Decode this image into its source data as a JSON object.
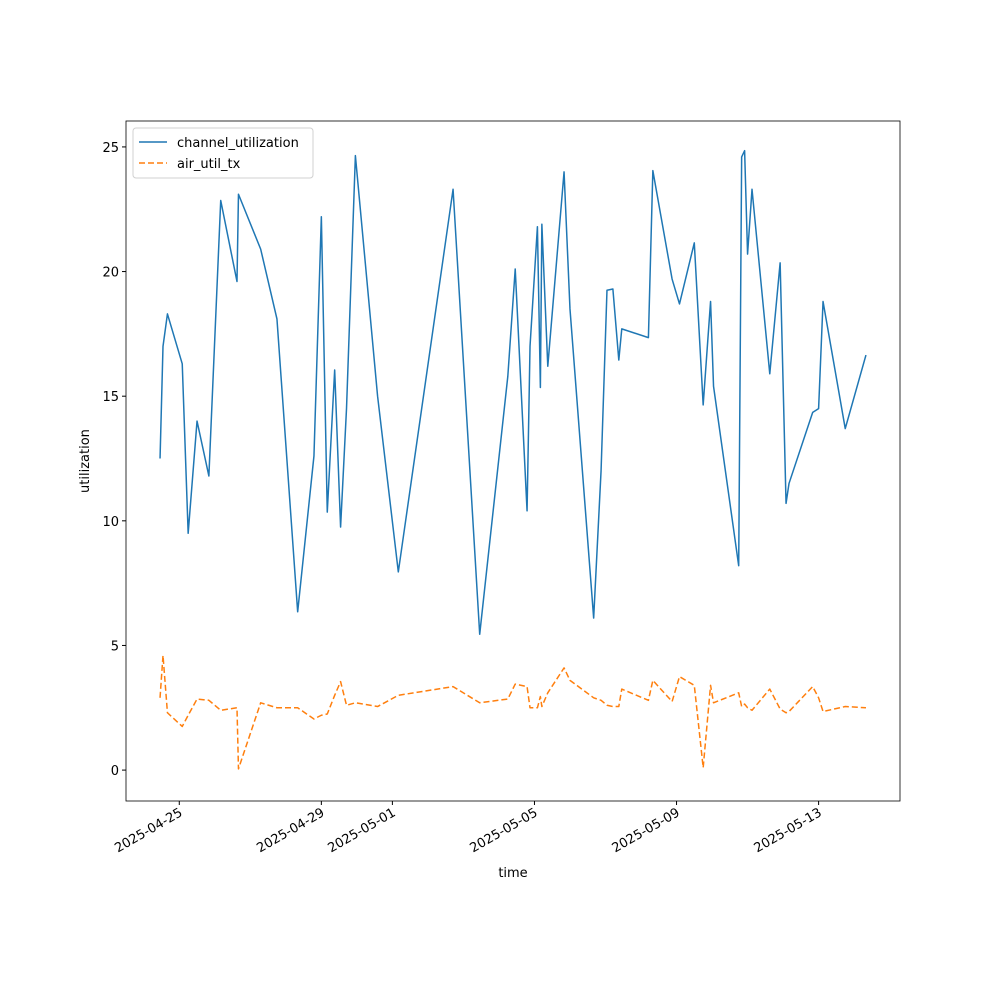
{
  "chart_data": {
    "type": "line",
    "xlabel": "time",
    "ylabel": "utilization",
    "x": [
      "2025-04-24T11:00",
      "2025-04-24T13:00",
      "2025-04-24T16:00",
      "2025-04-25T02:00",
      "2025-04-25T06:00",
      "2025-04-25T12:00",
      "2025-04-25T20:00",
      "2025-04-26T04:00",
      "2025-04-26T15:00",
      "2025-04-26T16:00",
      "2025-04-27T07:00",
      "2025-04-27T18:00",
      "2025-04-28T08:00",
      "2025-04-28T19:00",
      "2025-04-29T00:00",
      "2025-04-29T04:00",
      "2025-04-29T09:00",
      "2025-04-29T13:00",
      "2025-04-29T17:00",
      "2025-04-29T23:00",
      "2025-04-30T14:00",
      "2025-05-01T04:00",
      "2025-05-02T17:00",
      "2025-05-03T11:00",
      "2025-05-04T06:00",
      "2025-05-04T11:00",
      "2025-05-04T19:00",
      "2025-05-04T21:00",
      "2025-05-05T02:00",
      "2025-05-05T04:00",
      "2025-05-05T05:00",
      "2025-05-05T09:00",
      "2025-05-05T20:00",
      "2025-05-06T00:00",
      "2025-05-06T16:00",
      "2025-05-06T21:00",
      "2025-05-07T01:00",
      "2025-05-07T05:00",
      "2025-05-07T09:00",
      "2025-05-07T11:00",
      "2025-05-08T05:00",
      "2025-05-08T08:00",
      "2025-05-08T21:00",
      "2025-05-09T02:00",
      "2025-05-09T12:00",
      "2025-05-09T18:00",
      "2025-05-09T23:00",
      "2025-05-10T01:00",
      "2025-05-10T18:00",
      "2025-05-10T20:00",
      "2025-05-10T22:00",
      "2025-05-11T00:00",
      "2025-05-11T03:00",
      "2025-05-11T15:00",
      "2025-05-11T22:00",
      "2025-05-12T02:00",
      "2025-05-12T04:00",
      "2025-05-12T20:00",
      "2025-05-13T00:00",
      "2025-05-13T03:00",
      "2025-05-13T18:00",
      "2025-05-14T08:00"
    ],
    "series": [
      {
        "name": "channel_utilization",
        "color": "#1f77b4",
        "linestyle": "solid",
        "values": [
          12.5,
          17,
          18.3,
          16.3,
          9.5,
          14,
          11.8,
          22.85,
          19.6,
          23.1,
          20.9,
          18.1,
          6.35,
          12.6,
          22.2,
          10.35,
          16.05,
          9.75,
          14.5,
          24.65,
          15,
          7.95,
          23.3,
          5.45,
          15.8,
          20.1,
          10.4,
          17,
          21.8,
          15.35,
          21.9,
          16.2,
          24,
          18.5,
          6.1,
          12,
          19.25,
          19.3,
          16.45,
          17.7,
          17.35,
          24.05,
          19.7,
          18.7,
          21.15,
          14.65,
          18.8,
          15.4,
          8.2,
          24.6,
          24.85,
          20.7,
          23.3,
          15.9,
          20.35,
          10.7,
          11.5,
          14.35,
          14.5,
          18.8,
          13.7,
          16.65
        ]
      },
      {
        "name": "air_util_tx",
        "color": "#ff7f0e",
        "linestyle": "dashed",
        "values": [
          2.9,
          4.6,
          2.3,
          1.75,
          2.2,
          2.85,
          2.8,
          2.4,
          2.5,
          0.05,
          2.7,
          2.5,
          2.5,
          2.05,
          2.2,
          2.25,
          3,
          3.55,
          2.6,
          2.7,
          2.55,
          3.0,
          3.35,
          2.7,
          2.85,
          3.45,
          3.35,
          2.5,
          2.5,
          2.95,
          2.55,
          3.1,
          4.1,
          3.6,
          2.9,
          2.8,
          2.6,
          2.55,
          2.55,
          3.25,
          2.8,
          3.6,
          2.75,
          3.75,
          3.4,
          0.1,
          3.4,
          2.7,
          3.1,
          2.55,
          2.65,
          2.5,
          2.4,
          3.25,
          2.45,
          2.3,
          2.35,
          3.35,
          2.9,
          2.35,
          2.55,
          2.5
        ]
      }
    ],
    "xlim": [
      "2025-04-23T12:00",
      "2025-05-15T07:00"
    ],
    "xticks": [
      "2025-04-25",
      "2025-04-29",
      "2025-05-01",
      "2025-05-05",
      "2025-05-09",
      "2025-05-13"
    ],
    "ylim": [
      -1.24,
      26.04
    ],
    "yticks": [
      0,
      5,
      10,
      15,
      20,
      25
    ],
    "grid": false,
    "legend": "upper left"
  }
}
